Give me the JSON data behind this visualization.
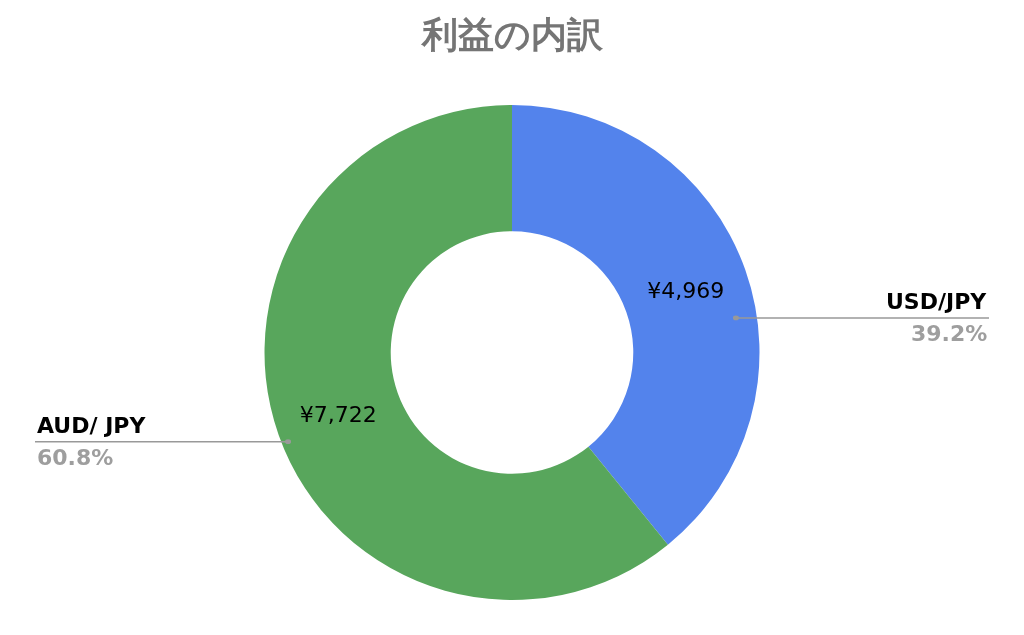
{
  "chart_data": {
    "type": "donut",
    "title": "利益の内訳",
    "categories": [
      "USD/JPY",
      "AUD/ JPY"
    ],
    "values": [
      4969,
      7722
    ],
    "colors": [
      "#5383ec",
      "#58a65c"
    ],
    "value_labels": [
      "¥4,969",
      "¥7,722"
    ],
    "annotations": [
      "39.2%",
      "60.8%"
    ],
    "legend": false
  }
}
